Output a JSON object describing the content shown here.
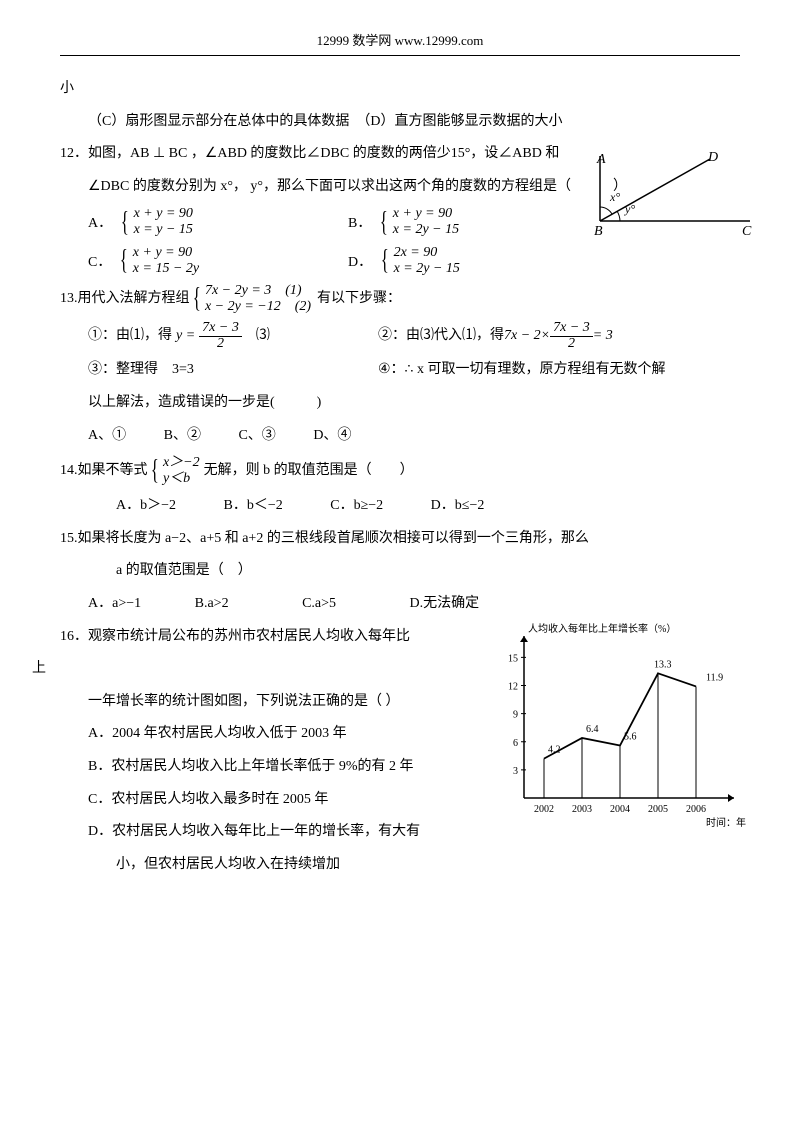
{
  "header": "12999 数学网  www.12999.com",
  "frag_top": "小",
  "q11": {
    "text": "（C）扇形图显示部分在总体中的具体数据　（D）直方图能够显示数据的大小"
  },
  "q12": {
    "stem1": "12．如图，AB ⊥ BC ，∠ABD 的度数比∠DBC 的度数的两倍少15°，设∠ABD 和",
    "stem2": "∠DBC 的度数分别为 x°， y°，那么下面可以求出这两个角的度数的方程组是（　　　）",
    "A": {
      "l1": "x + y = 90",
      "l2": "x = y − 15"
    },
    "B": {
      "l1": "x + y = 90",
      "l2": "x = 2y − 15"
    },
    "C": {
      "l1": "x + y = 90",
      "l2": "x = 15 − 2y"
    },
    "D": {
      "l1": "2x = 90",
      "l2": "x = 2y − 15"
    },
    "figure": {
      "A": "A",
      "D": "D",
      "B": "B",
      "C": "C",
      "x": "x°",
      "y": "y°"
    }
  },
  "q13": {
    "stem": "13.用代入法解方程组",
    "sys": {
      "l1": "7x − 2y = 3　(1)",
      "l2": "x − 2y = −12　(2)"
    },
    "tail": "有以下步骤：",
    "s1a": "①：由⑴，得 ",
    "s1b": "y =",
    "frac1": {
      "num": "7x − 3",
      "den": "2"
    },
    "s1c": "　⑶",
    "s2a": "②：由⑶代入⑴，得 ",
    "s2b": "7x − 2×",
    "frac2": {
      "num": "7x − 3",
      "den": "2"
    },
    "s2c": " = 3",
    "s3": "③：整理得　3=3",
    "s4": "④：∴ x 可取一切有理数，原方程组有无数个解",
    "s5": "以上解法，造成错误的一步是(　　　)",
    "opts": {
      "A": "A、①",
      "B": "B、②",
      "C": "C、③",
      "D": "D、④"
    }
  },
  "q14": {
    "stem1": "14.如果不等式",
    "sys": {
      "l1": "x＞−2",
      "l2": "y＜b"
    },
    "stem2": "无解，则 b 的取值范围是（　　）",
    "opts": {
      "A": "A．b＞−2",
      "B": "B．b＜−2",
      "C": "C．b≥−2",
      "D": "D．b≤−2"
    }
  },
  "q15": {
    "stem1": "15.如果将长度为 a−2、a+5 和 a+2 的三根线段首尾顺次相接可以得到一个三角形，那么",
    "stem2": "a 的取值范围是（　）",
    "opts": {
      "A": "A．a>−1",
      "B": "B.a>2",
      "C": "C.a>5",
      "D": "D.无法确定"
    }
  },
  "q16": {
    "stem1": "16．观察市统计局公布的苏州市农村居民人均收入每年比",
    "stem1b": "上",
    "stem2": "一年增长率的统计图如图，下列说法正确的是（ ）",
    "A": "A．2004 年农村居民人均收入低于 2003 年",
    "B": "B．农村居民人均收入比上年增长率低于 9%的有 2 年",
    "C": "C．农村居民人均收入最多时在 2005 年",
    "D1": "D．农村居民人均收入每年比上一年的增长率，有大有",
    "D2": "小，但农村居民人均收入在持续增加",
    "chart": {
      "title": "人均收入每年比上年增长率（%）",
      "xlabel": "时间：年",
      "years": [
        "2002",
        "2003",
        "2004",
        "2005",
        "2006"
      ],
      "values": [
        4.2,
        6.4,
        5.6,
        13.3,
        11.9
      ],
      "yticks": [
        3,
        6,
        9,
        12,
        15
      ],
      "axis_color": "#000000",
      "line_color": "#000000",
      "background": "#ffffff",
      "font_size": 10
    }
  }
}
